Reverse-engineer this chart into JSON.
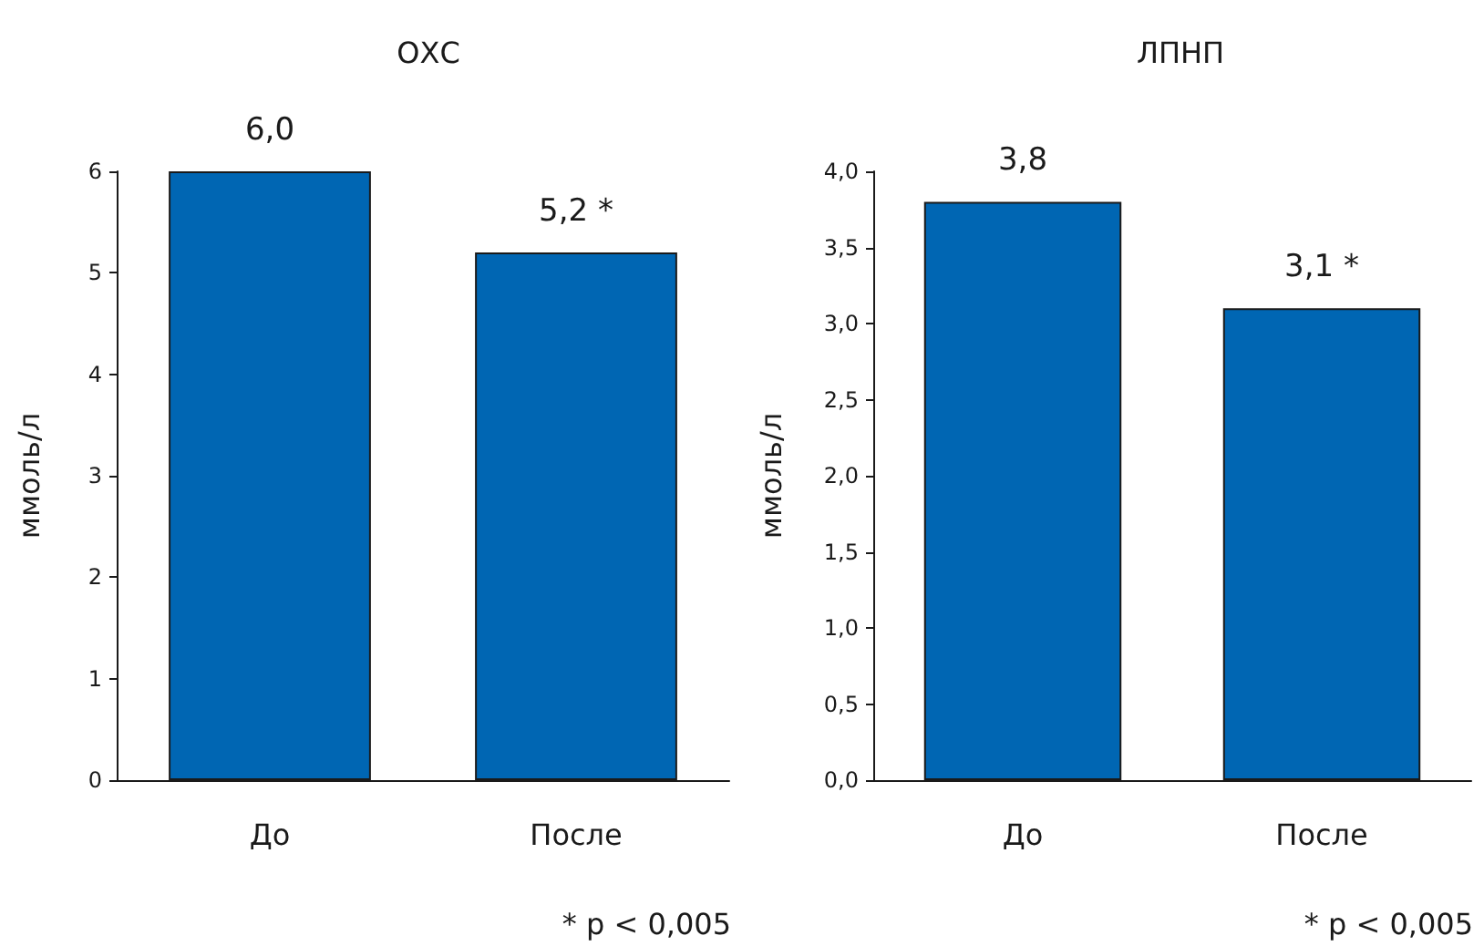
{
  "chart_data": [
    {
      "type": "bar",
      "title": "ОХС",
      "ylabel": "ммоль/л",
      "categories": [
        "До",
        "После"
      ],
      "values": [
        6.0,
        5.2
      ],
      "value_labels": [
        "6,0",
        "5,2 *"
      ],
      "color": "#0066b3",
      "ylim": [
        0,
        6
      ],
      "yticks": [
        0,
        1,
        2,
        3,
        4,
        5,
        6
      ],
      "grid": false,
      "annotations": [
        "* p < 0,005"
      ]
    },
    {
      "type": "bar",
      "title": "ЛПНП",
      "ylabel": "ммоль/л",
      "categories": [
        "До",
        "После"
      ],
      "values": [
        3.8,
        3.1
      ],
      "value_labels": [
        "3,8",
        "3,1 *"
      ],
      "color": "#0066b3",
      "ylim": [
        0,
        4
      ],
      "yticks": [
        {
          "value": 0,
          "label": "0,0"
        },
        {
          "value": 0.5,
          "label": "0,5"
        },
        {
          "value": 1,
          "label": "1,0"
        },
        {
          "value": 1.5,
          "label": "1,5"
        },
        {
          "value": 2,
          "label": "2,0"
        },
        {
          "value": 2.5,
          "label": "2,5"
        },
        {
          "value": 3,
          "label": "3,0"
        },
        {
          "value": 3.5,
          "label": "3,5"
        },
        {
          "value": 4,
          "label": "4,0"
        }
      ],
      "grid": false,
      "annotations": [
        "* p < 0,005"
      ]
    }
  ]
}
